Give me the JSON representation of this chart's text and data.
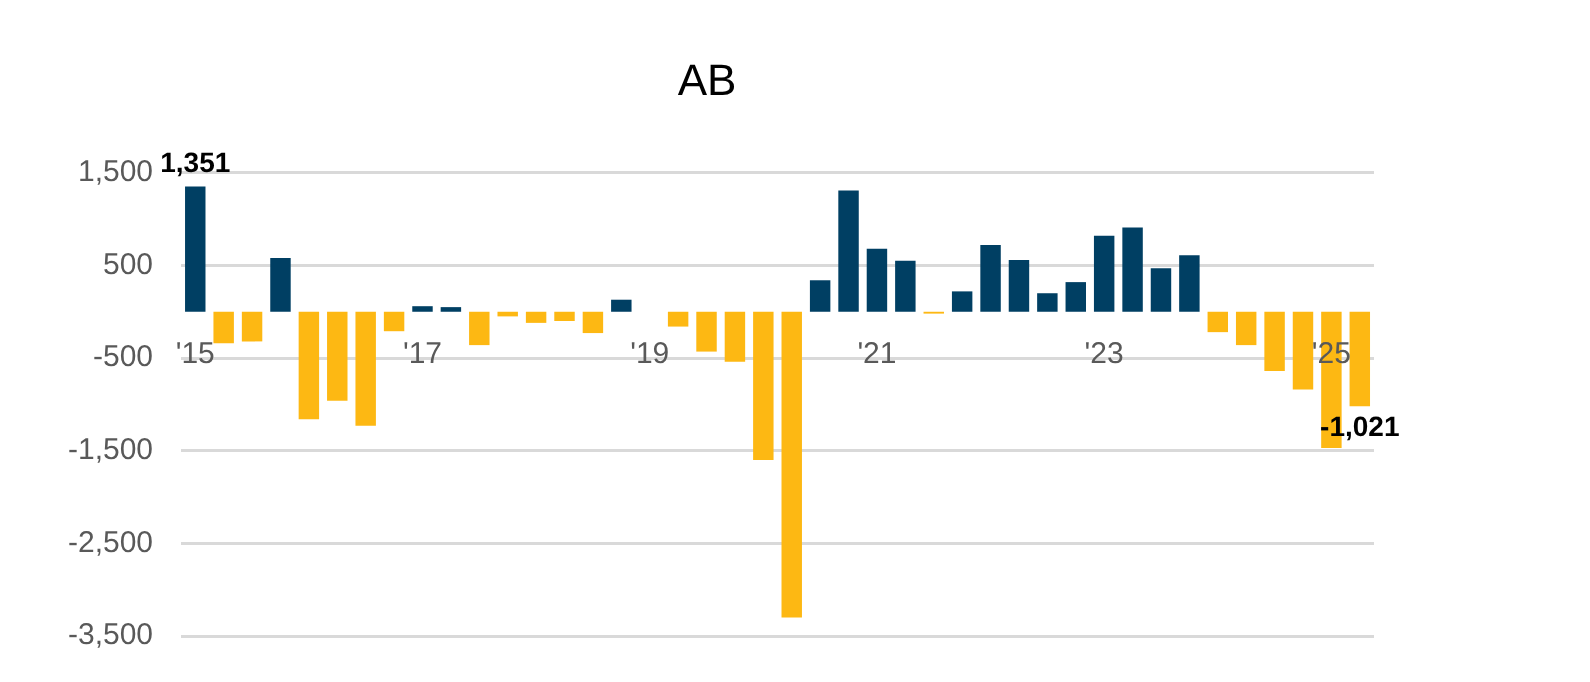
{
  "chart_data": {
    "type": "bar",
    "title": "AB",
    "categories": [
      "'15",
      null,
      null,
      null,
      null,
      null,
      null,
      null,
      "'17",
      null,
      null,
      null,
      null,
      null,
      null,
      null,
      "'19",
      null,
      null,
      null,
      null,
      null,
      null,
      null,
      "'21",
      null,
      null,
      null,
      null,
      null,
      null,
      null,
      "'23",
      null,
      null,
      null,
      null,
      null,
      null,
      null,
      "'25",
      null
    ],
    "values": [
      1351,
      -340,
      -320,
      580,
      -1160,
      -960,
      -1230,
      -210,
      60,
      50,
      -360,
      -50,
      -120,
      -100,
      -230,
      130,
      0,
      -160,
      -430,
      -540,
      -1600,
      -3300,
      340,
      1310,
      680,
      550,
      -20,
      220,
      720,
      560,
      200,
      320,
      820,
      910,
      470,
      610,
      -220,
      -360,
      -640,
      -840,
      -1470,
      -1021
    ],
    "colors": [
      "#003f63",
      "#fdb813",
      "#fdb813",
      "#003f63",
      "#fdb813",
      "#fdb813",
      "#fdb813",
      "#fdb813",
      "#003f63",
      "#003f63",
      "#fdb813",
      "#fdb813",
      "#fdb813",
      "#fdb813",
      "#fdb813",
      "#003f63",
      "#fdb813",
      "#fdb813",
      "#fdb813",
      "#fdb813",
      "#fdb813",
      "#fdb813",
      "#003f63",
      "#003f63",
      "#003f63",
      "#003f63",
      "#fdb813",
      "#003f63",
      "#003f63",
      "#003f63",
      "#003f63",
      "#003f63",
      "#003f63",
      "#003f63",
      "#003f63",
      "#003f63",
      "#fdb813",
      "#fdb813",
      "#fdb813",
      "#fdb813",
      "#fdb813",
      "#fdb813"
    ],
    "value_labels": [
      "1,351",
      null,
      null,
      null,
      null,
      null,
      null,
      null,
      null,
      null,
      null,
      null,
      null,
      null,
      null,
      null,
      null,
      null,
      null,
      null,
      null,
      null,
      null,
      null,
      null,
      null,
      null,
      null,
      null,
      null,
      null,
      null,
      null,
      null,
      null,
      null,
      null,
      null,
      null,
      null,
      null,
      "-1,021"
    ],
    "ylim": [
      -3500,
      1500
    ],
    "yticks": [
      {
        "value": -3500,
        "label": "-3,500"
      },
      {
        "value": -2500,
        "label": "-2,500"
      },
      {
        "value": -1500,
        "label": "-1,500"
      },
      {
        "value": -500,
        "label": "-500"
      },
      {
        "value": 500,
        "label": "500"
      },
      {
        "value": 1500,
        "label": "1,500"
      }
    ],
    "grid": "y",
    "legend": false
  }
}
